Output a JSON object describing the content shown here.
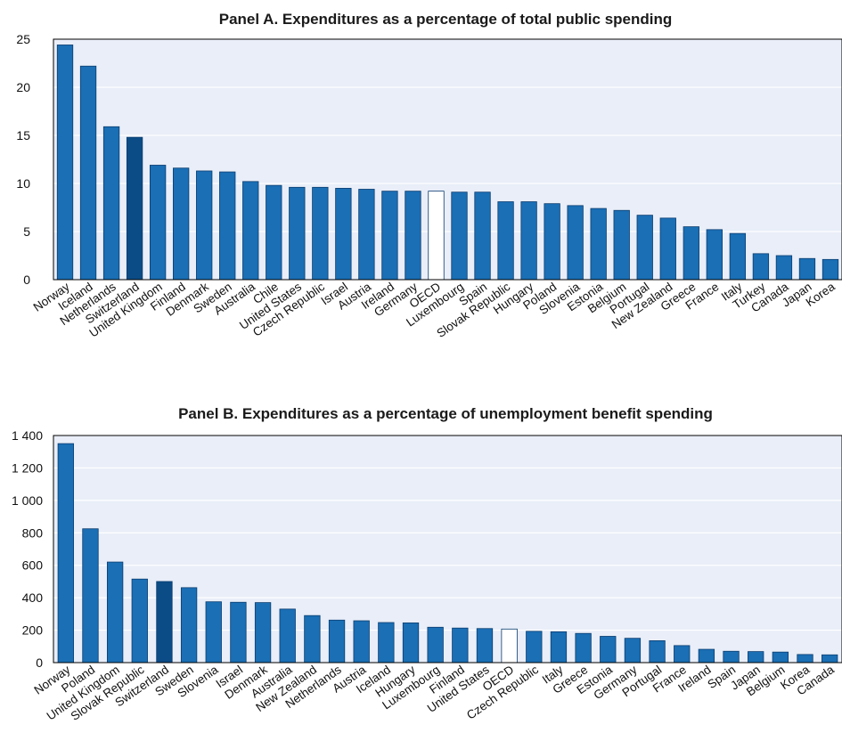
{
  "colors": {
    "plot_bg": "#e9eef8",
    "grid": "#ffffff",
    "bar": "#1a6fb5",
    "bar_highlight": "#0b4c86",
    "bar_oecd": "#ffffff",
    "bar_stroke": "#0b3c70",
    "axis": "#000000"
  },
  "chart_data": [
    {
      "type": "bar",
      "title": "Panel A. Expenditures as a percentage of total public spending",
      "xlabel": "",
      "ylabel": "",
      "ylim": [
        0,
        25
      ],
      "yticks": [
        0,
        5,
        10,
        15,
        20,
        25
      ],
      "ytick_labels": [
        "0",
        "5",
        "10",
        "15",
        "20",
        "25"
      ],
      "grid": true,
      "highlight": "Switzerland",
      "reference": "OECD",
      "categories": [
        "Norway",
        "Iceland",
        "Netherlands",
        "Switzerland",
        "United Kingdom",
        "Finland",
        "Denmark",
        "Sweden",
        "Australia",
        "Chile",
        "United States",
        "Czech Republic",
        "Israel",
        "Austria",
        "Ireland",
        "Germany",
        "OECD",
        "Luxembourg",
        "Spain",
        "Slovak Republic",
        "Hungary",
        "Poland",
        "Slovenia",
        "Estonia",
        "Belgium",
        "Portugal",
        "New Zealand",
        "Greece",
        "France",
        "Italy",
        "Turkey",
        "Canada",
        "Japan",
        "Korea"
      ],
      "values": [
        24.4,
        22.2,
        15.9,
        14.8,
        11.9,
        11.6,
        11.3,
        11.2,
        10.2,
        9.8,
        9.6,
        9.6,
        9.5,
        9.4,
        9.2,
        9.2,
        9.2,
        9.1,
        9.1,
        8.1,
        8.1,
        7.9,
        7.7,
        7.4,
        7.2,
        6.7,
        6.4,
        5.5,
        5.2,
        4.8,
        2.7,
        2.5,
        2.2,
        2.1
      ]
    },
    {
      "type": "bar",
      "title": "Panel B. Expenditures as a percentage of unemployment benefit spending",
      "xlabel": "",
      "ylabel": "",
      "ylim": [
        0,
        1400
      ],
      "yticks": [
        0,
        200,
        400,
        600,
        800,
        1000,
        1200,
        1400
      ],
      "ytick_labels": [
        "0",
        "200",
        "400",
        "600",
        "800",
        "1 000",
        "1 200",
        "1 400"
      ],
      "grid": true,
      "highlight": "Switzerland",
      "reference": "OECD",
      "categories": [
        "Norway",
        "Poland",
        "United Kingdom",
        "Slovak Republic",
        "Switzerland",
        "Sweden",
        "Slovenia",
        "Israel",
        "Denmark",
        "Australia",
        "New Zealand",
        "Netherlands",
        "Austria",
        "Iceland",
        "Hungary",
        "Luxembourg",
        "Finland",
        "United States",
        "OECD",
        "Czech Republic",
        "Italy",
        "Greece",
        "Estonia",
        "Germany",
        "Portugal",
        "France",
        "Ireland",
        "Spain",
        "Japan",
        "Belgium",
        "Korea",
        "Canada"
      ],
      "values": [
        1350,
        825,
        620,
        515,
        500,
        462,
        375,
        372,
        370,
        330,
        290,
        262,
        258,
        247,
        245,
        218,
        213,
        210,
        207,
        193,
        190,
        180,
        162,
        150,
        135,
        105,
        82,
        70,
        68,
        65,
        50,
        48
      ]
    }
  ]
}
